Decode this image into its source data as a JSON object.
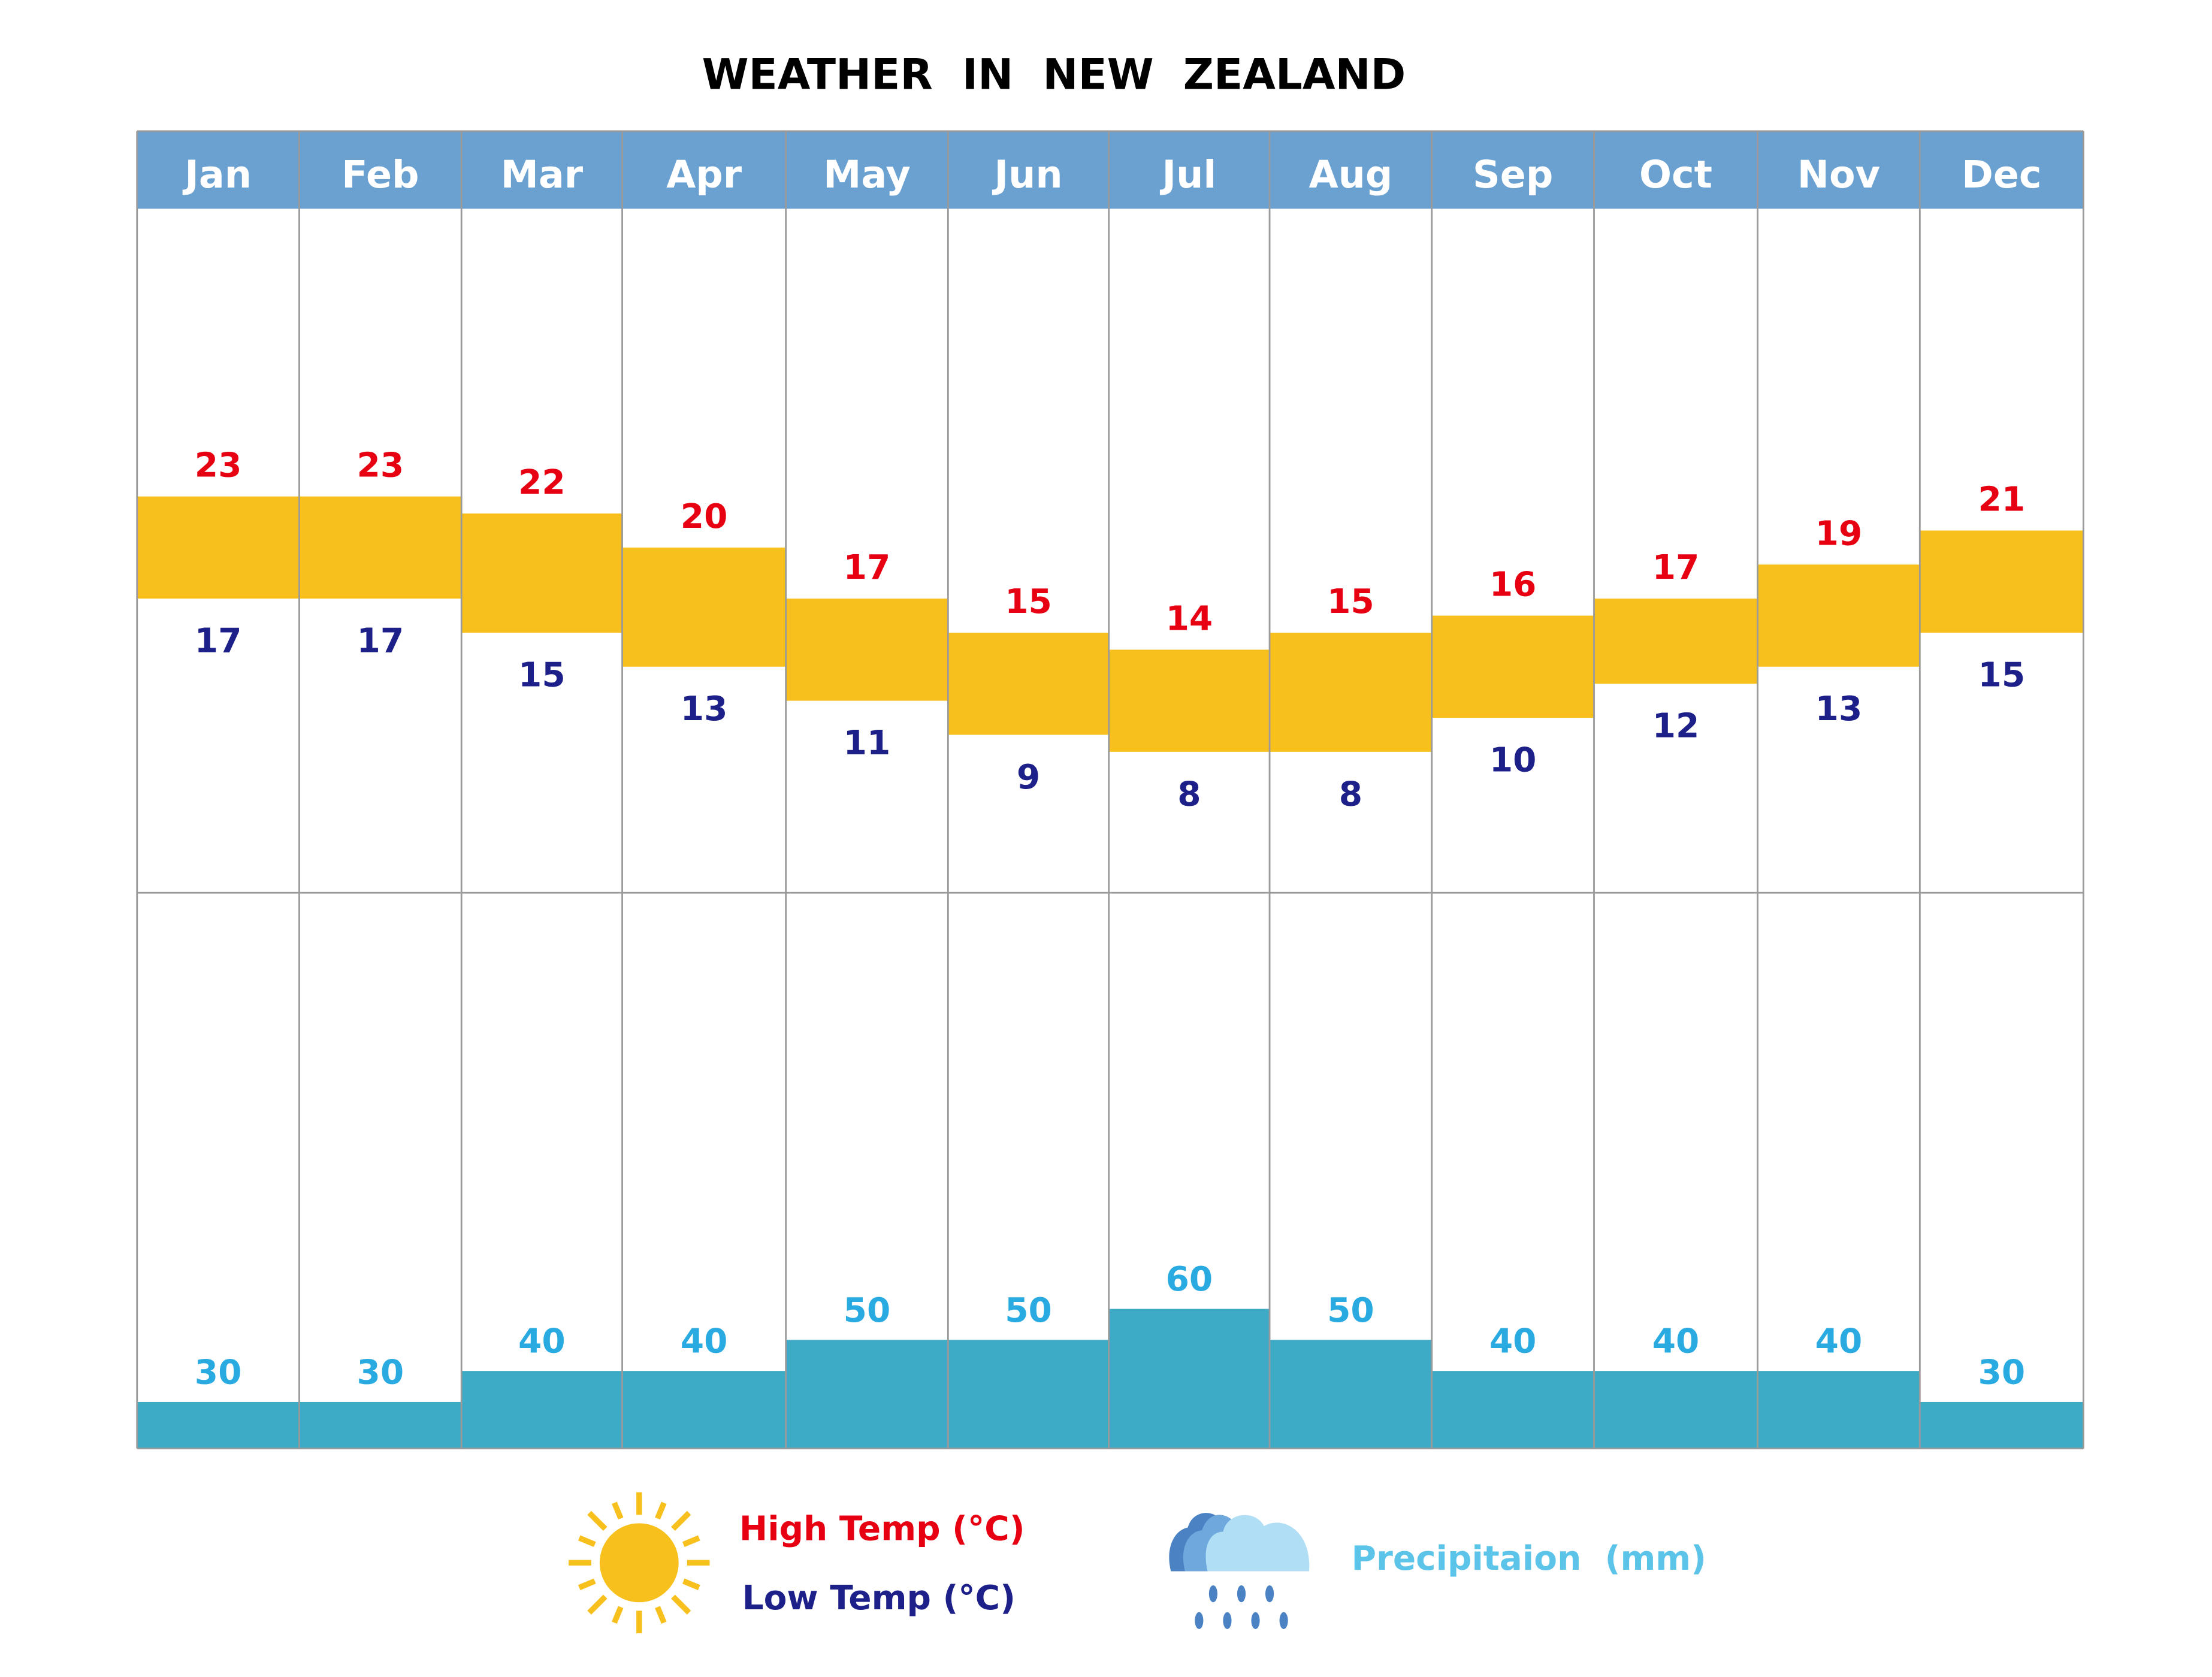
{
  "chart_data": {
    "type": "bar",
    "title": "WEATHER  IN  NEW  ZEALAND",
    "categories": [
      "Jan",
      "Feb",
      "Mar",
      "Apr",
      "May",
      "Jun",
      "Jul",
      "Aug",
      "Sep",
      "Oct",
      "Nov",
      "Dec"
    ],
    "series": [
      {
        "name": "High Temp (°C)",
        "values": [
          23,
          23,
          22,
          20,
          17,
          15,
          14,
          15,
          16,
          17,
          19,
          21
        ]
      },
      {
        "name": "Low Temp (°C)",
        "values": [
          17,
          17,
          15,
          13,
          11,
          9,
          8,
          8,
          10,
          12,
          13,
          15
        ]
      },
      {
        "name": "Precipitaion (mm)",
        "values": [
          30,
          30,
          40,
          40,
          50,
          50,
          60,
          50,
          40,
          40,
          40,
          30
        ]
      }
    ],
    "legend": {
      "high_label": "High Temp",
      "low_label": "Low Temp",
      "unit_temp": "(°C)",
      "precip_label": "Precipitaion  (mm)",
      "placement": "bottom"
    },
    "colors": {
      "header": "#6aa1d0",
      "temp_bar": "#f8c01d",
      "high": "#e60012",
      "low": "#1d2088",
      "precip_bar": "#3daac6",
      "precip_text": "#29abe2",
      "precip_legend": "#5bc4e8"
    }
  }
}
